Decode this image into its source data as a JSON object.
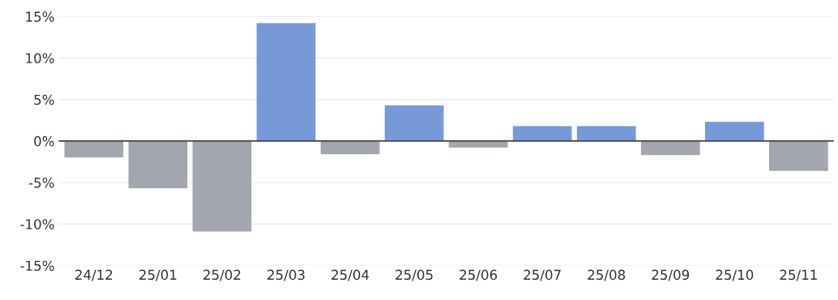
{
  "chart_data": {
    "type": "bar",
    "categories": [
      "24/12",
      "25/01",
      "25/02",
      "25/03",
      "25/04",
      "25/05",
      "25/06",
      "25/07",
      "25/08",
      "25/09",
      "25/10",
      "25/11"
    ],
    "values": [
      -2.0,
      -5.7,
      -10.9,
      14.2,
      -1.6,
      4.3,
      -0.8,
      1.8,
      1.8,
      -1.7,
      2.3,
      -3.6
    ],
    "colors": [
      "#a3a6ae",
      "#a3a6ae",
      "#a3a6ae",
      "#7899d8",
      "#a3a6ae",
      "#7899d8",
      "#a3a6ae",
      "#7899d8",
      "#7899d8",
      "#a3a6ae",
      "#7899d8",
      "#a3a6ae"
    ],
    "ylim": [
      -15,
      15
    ],
    "yticks": [
      {
        "value": -15,
        "label": "-15%"
      },
      {
        "value": -10,
        "label": "-10%"
      },
      {
        "value": -5,
        "label": "-5%"
      },
      {
        "value": 0,
        "label": "0%"
      },
      {
        "value": 5,
        "label": "5%"
      },
      {
        "value": 10,
        "label": "10%"
      },
      {
        "value": 15,
        "label": "15%"
      }
    ],
    "ref_lines": [
      {
        "axis": "y",
        "value": 0,
        "color": "#444444"
      }
    ],
    "grid": "y"
  }
}
